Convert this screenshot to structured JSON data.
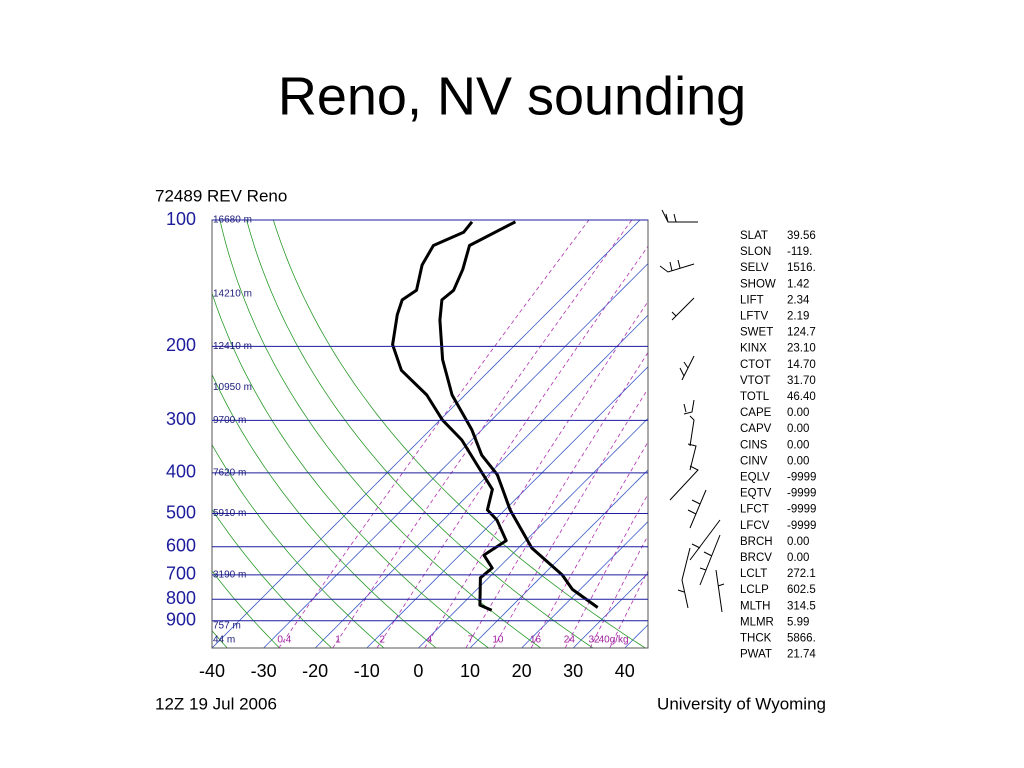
{
  "slide_title": "Reno, NV sounding",
  "chart_data": {
    "type": "skewt",
    "title": "72489 REV Reno",
    "footer_left": "12Z 19 Jul 2006",
    "footer_right": "University of Wyoming",
    "xlim": [
      -40,
      44.5
    ],
    "xticks": [
      -40,
      -30,
      -20,
      -10,
      0,
      10,
      20,
      30,
      40
    ],
    "ylim": [
      1045,
      100
    ],
    "log_scale": true,
    "grid": true,
    "yticks": [
      100,
      200,
      300,
      400,
      500,
      600,
      700,
      800,
      900
    ],
    "heights": [
      {
        "value": 100,
        "label": "16680 m"
      },
      {
        "value": 150,
        "label": "14210 m"
      },
      {
        "value": 200,
        "label": "12410 m"
      },
      {
        "value": 250,
        "label": "10950 m"
      },
      {
        "value": 300,
        "label": "9700 m"
      },
      {
        "value": 400,
        "label": "7620 m"
      },
      {
        "value": 500,
        "label": "5910 m"
      },
      {
        "value": 700,
        "label": "3190 m"
      },
      {
        "value": 925,
        "label": "757 m"
      },
      {
        "value": 1000,
        "label": "44 m"
      }
    ],
    "mixing_ratios": [
      {
        "value": 0.4,
        "label": "0.4"
      },
      1,
      2,
      4,
      7,
      10,
      16,
      24,
      32,
      {
        "value": 40,
        "label": "40g/kg"
      }
    ],
    "series": [
      {
        "color": "#000000",
        "pressure": [
          101,
          115,
          131,
          147,
          155,
          173,
          215,
          261,
          316,
          363,
          404,
          438,
          490,
          548,
          604,
          700,
          758,
          837
        ],
        "values": [
          -63.8,
          -68.1,
          -64.8,
          -62.5,
          -62.9,
          -59.4,
          -51.2,
          -42.5,
          -31.9,
          -25.1,
          -18.3,
          -14.4,
          -9.0,
          -2.8,
          2.6,
          13.7,
          18.5,
          26.9
        ]
      },
      {
        "color": "#000000",
        "pressure": [
          101,
          107,
          115,
          128,
          147,
          155,
          168,
          198,
          228,
          261,
          299,
          334,
          383,
          438,
          490,
          518,
          580,
          628,
          674,
          711,
          826,
          850
        ],
        "values": [
          -72.2,
          -71.8,
          -75.1,
          -73.5,
          -69.7,
          -70.6,
          -68.7,
          -63.8,
          -57.1,
          -47.4,
          -39.6,
          -31.9,
          -24.1,
          -16.4,
          -13.4,
          -9.6,
          -3.8,
          -5.3,
          -1.2,
          -1.6,
          3.6,
          6.9
        ]
      }
    ],
    "stats": [
      [
        "SLAT",
        "39.56"
      ],
      [
        "SLON",
        "-119."
      ],
      [
        "SELV",
        "1516."
      ],
      [
        "SHOW",
        "1.42"
      ],
      [
        "LIFT",
        "2.34"
      ],
      [
        "LFTV",
        "2.19"
      ],
      [
        "SWET",
        "124.7"
      ],
      [
        "KINX",
        "23.10"
      ],
      [
        "CTOT",
        "14.70"
      ],
      [
        "VTOT",
        "31.70"
      ],
      [
        "TOTL",
        "46.40"
      ],
      [
        "CAPE",
        "0.00"
      ],
      [
        "CAPV",
        "0.00"
      ],
      [
        "CINS",
        "0.00"
      ],
      [
        "CINV",
        "0.00"
      ],
      [
        "EQLV",
        "-9999"
      ],
      [
        "EQTV",
        "-9999"
      ],
      [
        "LFCT",
        "-9999"
      ],
      [
        "LFCV",
        "-9999"
      ],
      [
        "BRCH",
        "0.00"
      ],
      [
        "BRCV",
        "0.00"
      ],
      [
        "LCLT",
        "272.1"
      ],
      [
        "LCLP",
        "602.5"
      ],
      [
        "MLTH",
        "314.5"
      ],
      [
        "MLMR",
        "5.99"
      ],
      [
        "THCK",
        "5866."
      ],
      [
        "PWAT",
        "21.74"
      ]
    ]
  }
}
